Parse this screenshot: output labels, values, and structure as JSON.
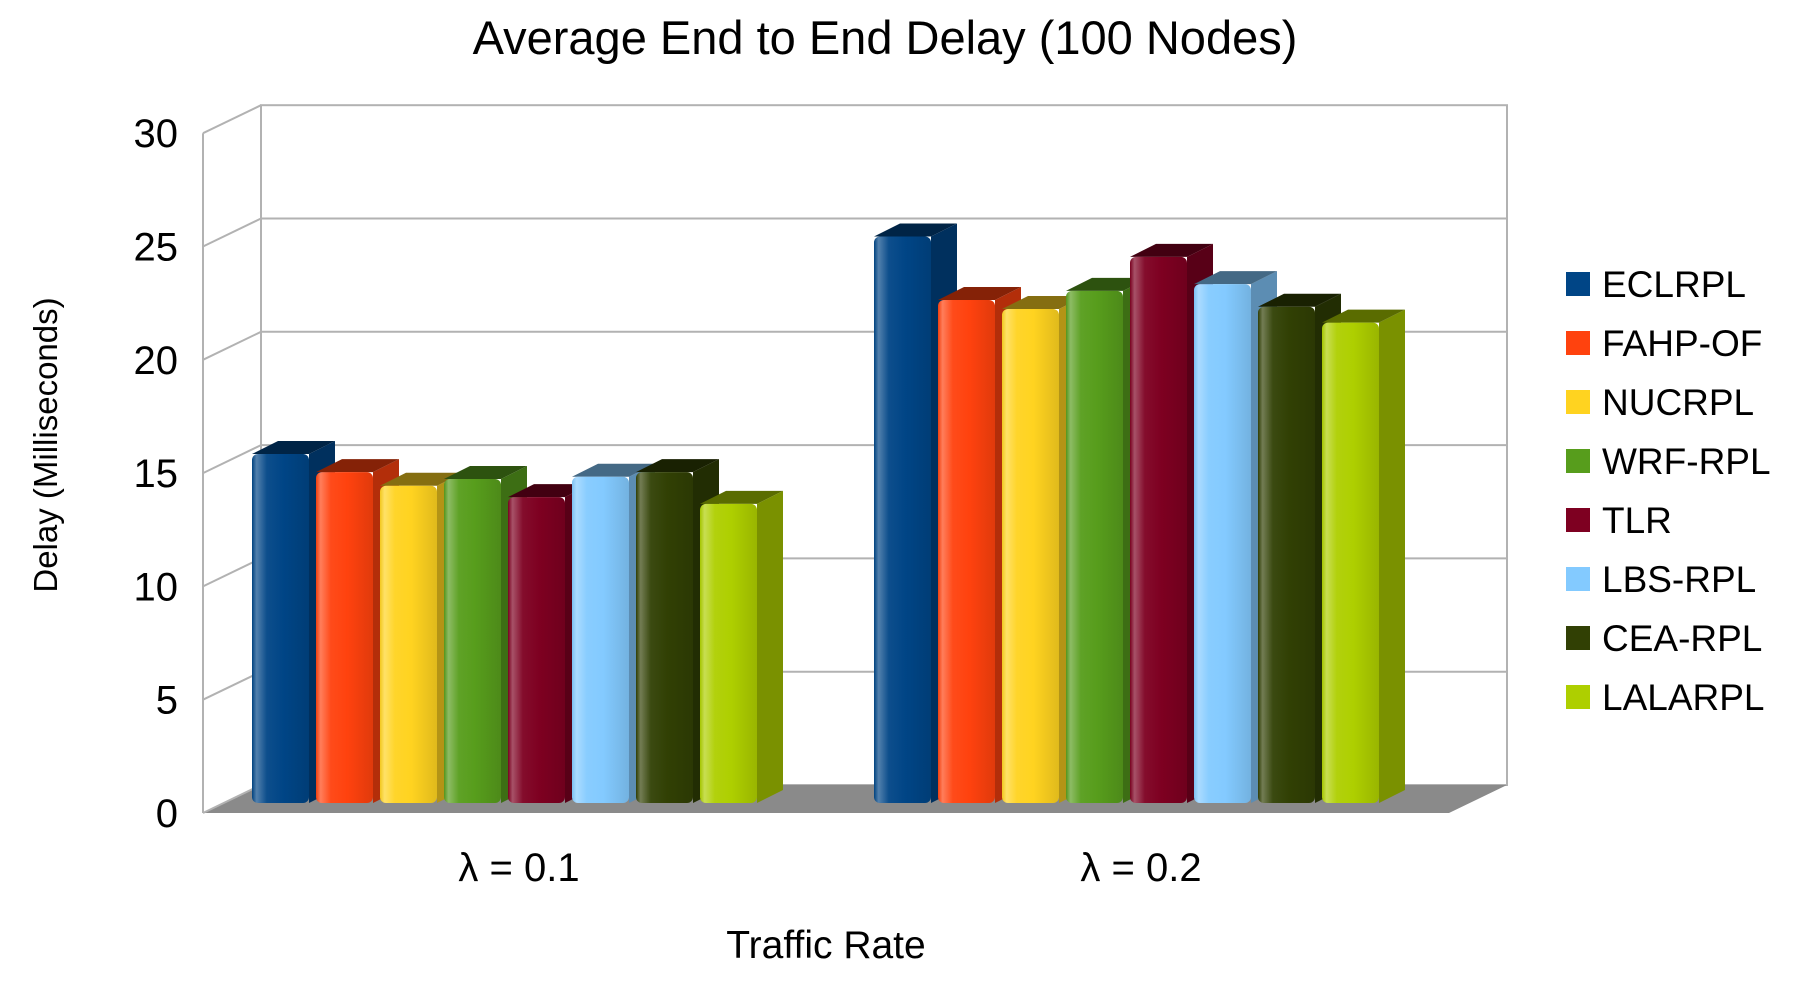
{
  "title": "Average End to End Delay (100 Nodes)",
  "chart_data": {
    "type": "bar",
    "projection": "3d",
    "title": "Average End to End Delay (100 Nodes)",
    "xlabel": "Traffic Rate",
    "ylabel": "Delay (Milliseconds)",
    "categories": [
      "λ = 0.1",
      "λ = 0.2"
    ],
    "y_ticks": [
      0,
      5,
      10,
      15,
      20,
      25,
      30
    ],
    "ylim": [
      0,
      30
    ],
    "grid": true,
    "legend_position": "right",
    "wall_color": "#FFFFFF",
    "floor_color": "#8A8A8A",
    "gridline_color": "#B2B2B2",
    "series": [
      {
        "name": "ECLRPL",
        "color": "#004586",
        "values": [
          15.4,
          25.0
        ]
      },
      {
        "name": "FAHP-OF",
        "color": "#FF420E",
        "values": [
          14.6,
          22.2
        ]
      },
      {
        "name": "NUCRPL",
        "color": "#FFD320",
        "values": [
          14.0,
          21.8
        ]
      },
      {
        "name": "WRF-RPL",
        "color": "#579D1C",
        "values": [
          14.3,
          22.6
        ]
      },
      {
        "name": "TLR",
        "color": "#7E0021",
        "values": [
          13.5,
          24.1
        ]
      },
      {
        "name": "LBS-RPL",
        "color": "#83CAFF",
        "values": [
          14.4,
          22.9
        ]
      },
      {
        "name": "CEA-RPL",
        "color": "#314004",
        "values": [
          14.6,
          21.9
        ]
      },
      {
        "name": "LALARPL",
        "color": "#AECF00",
        "values": [
          13.2,
          21.2
        ]
      }
    ]
  }
}
